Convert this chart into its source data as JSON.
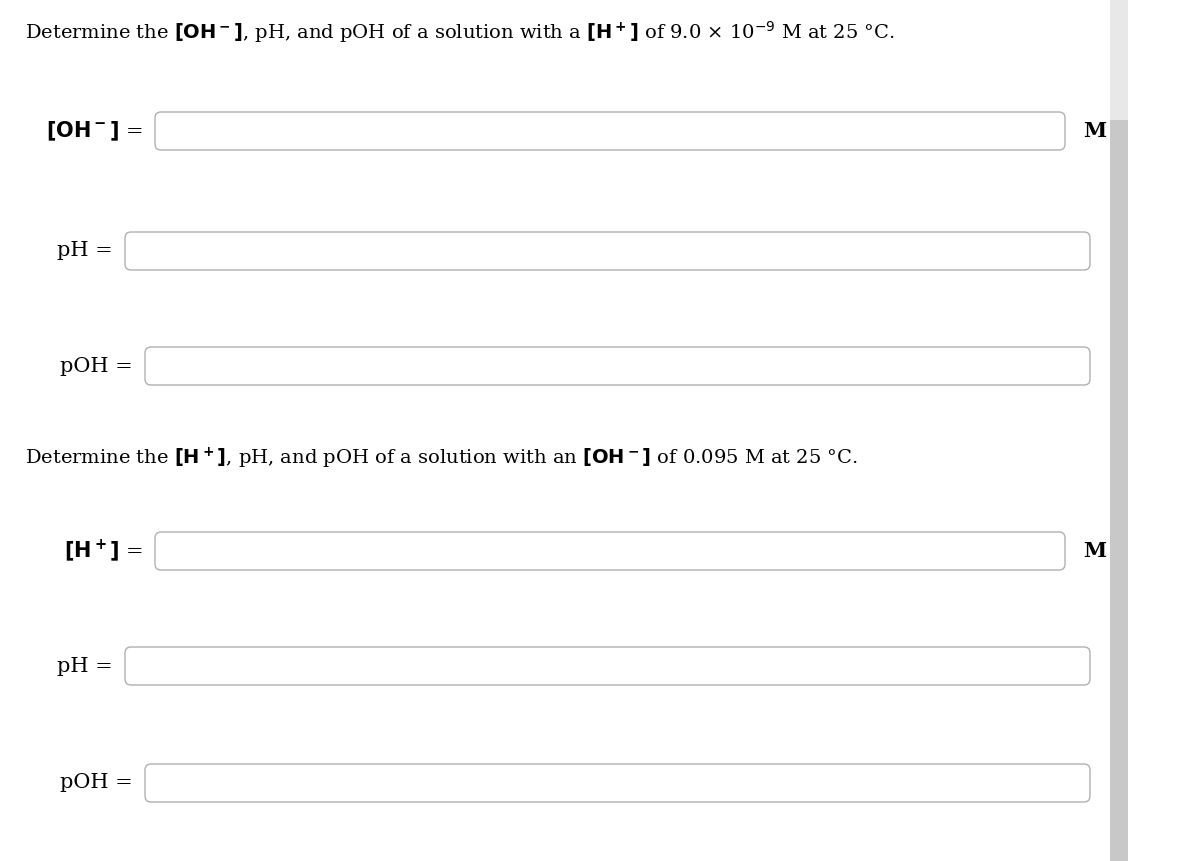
{
  "background_color": "#ffffff",
  "text_color": "#000000",
  "box_color": "#ffffff",
  "box_edge_color": "#b0b0b0",
  "scrollbar_color": "#c8c8c8",
  "font_size": 14,
  "title1_line1": "Determine the $\\mathbf{[OH^-]}$, pH, and pOH of a solution with a $\\mathbf{[H^+]}$ of 9.0 × 10$^{-9}$ M at 25 °C.",
  "title2_line1": "Determine the $\\mathbf{[H^+]}$, pH, and pOH of a solution with an $\\mathbf{[OH^-]}$ of 0.095 M at 25 °C.",
  "label_OH": "$\\mathrm{[OH^-]}$ =",
  "label_Hp": "$\\mathrm{[H^+]}$ =",
  "label_pH": "pH =",
  "label_pOH": "pOH =",
  "label_M": "M"
}
